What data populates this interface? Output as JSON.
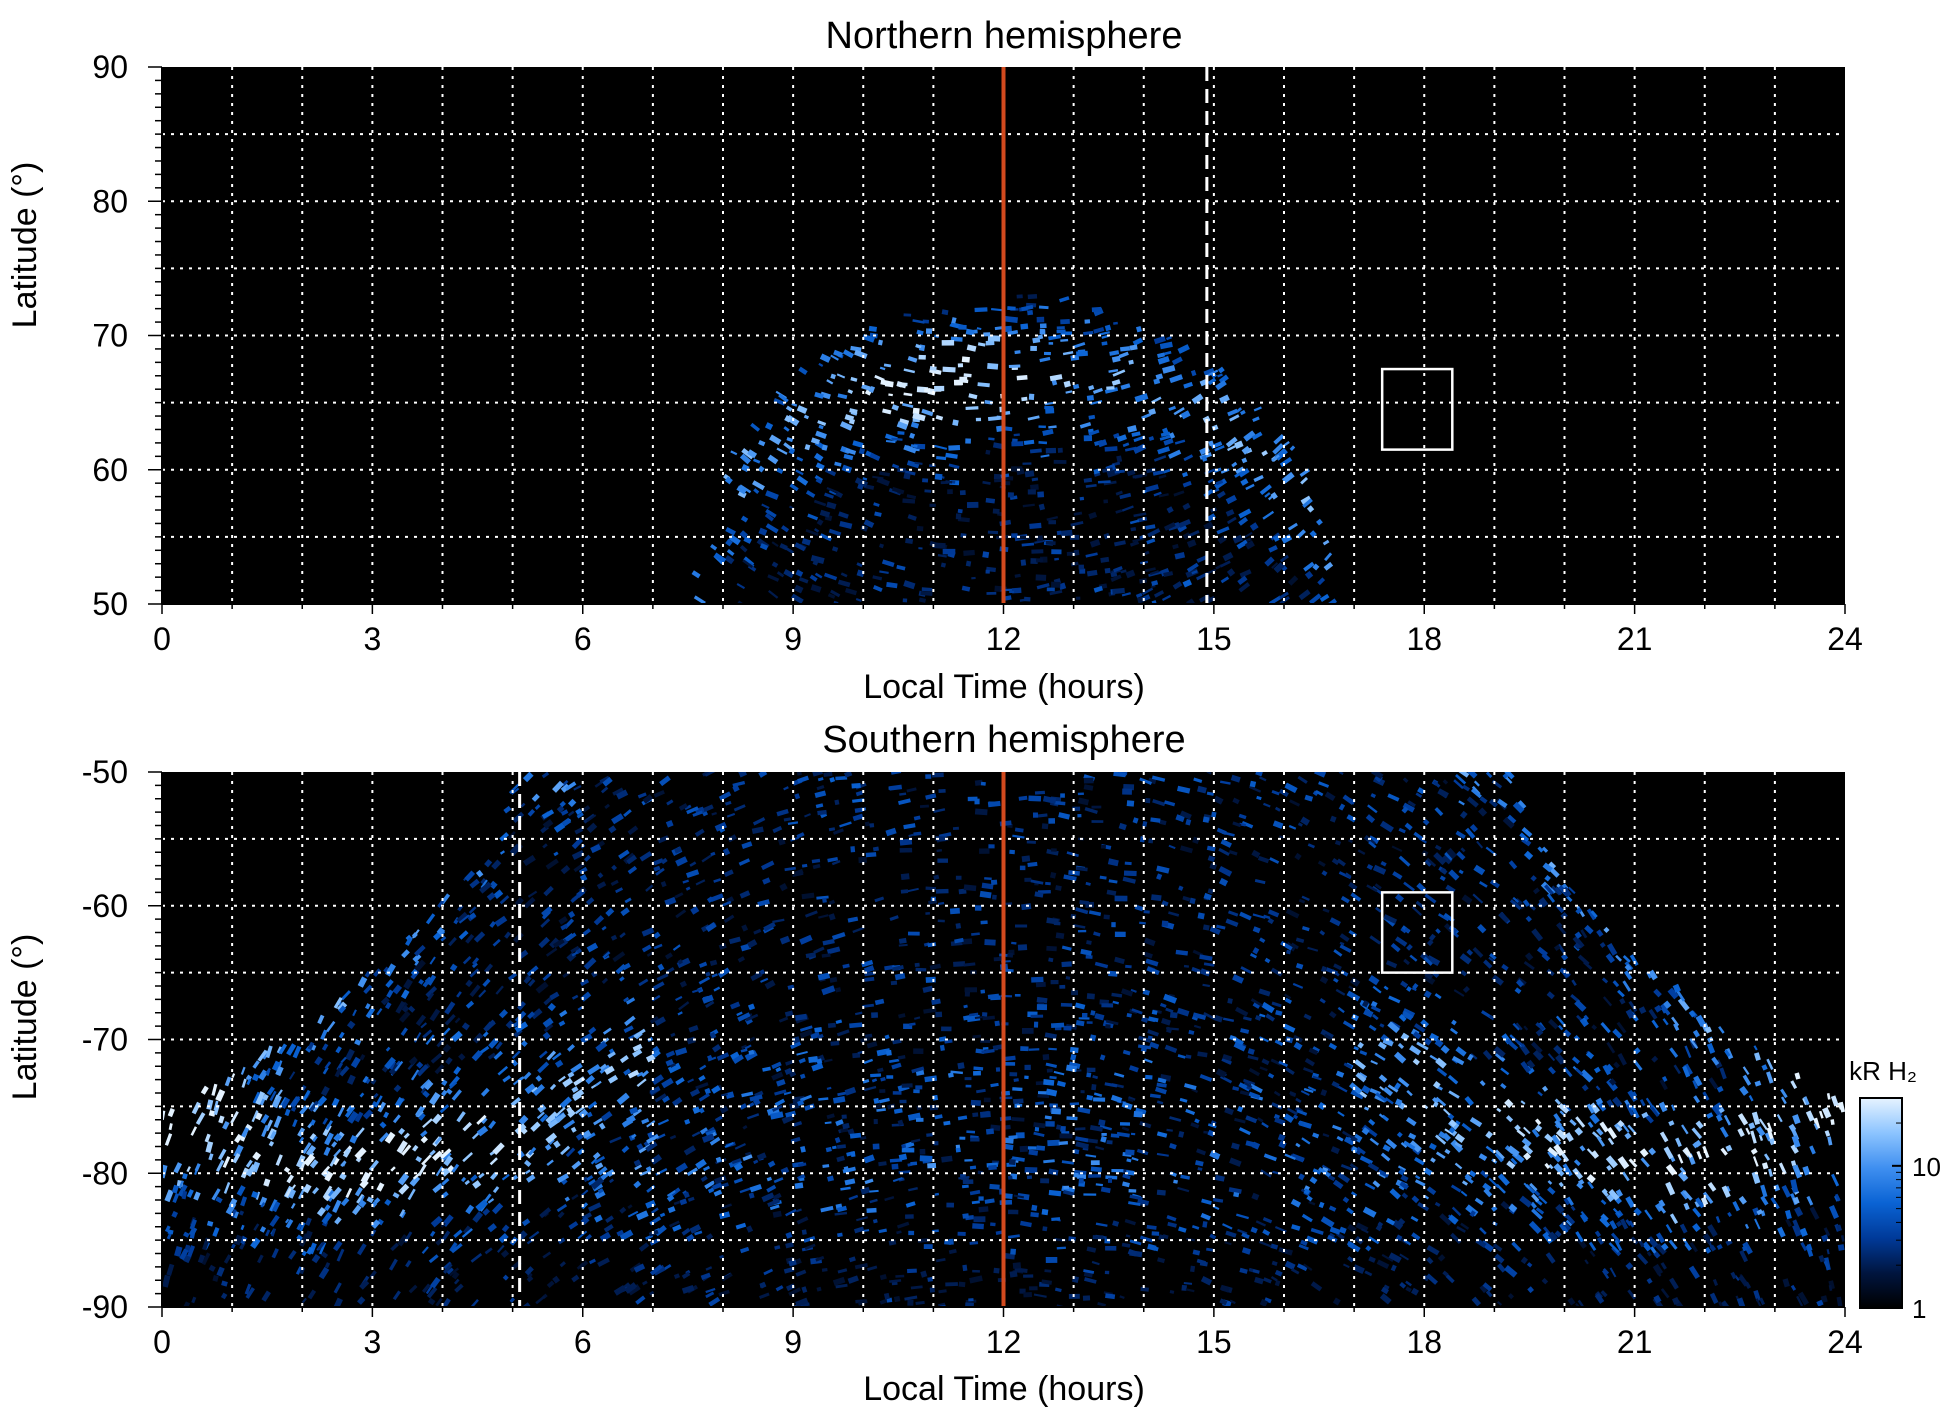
{
  "colors": {
    "background": "#000000",
    "grid": "#ffffff",
    "noon_line": "#d24a1e",
    "terminator_line": "#ffffff",
    "box": "#ffffff",
    "colormap": [
      "#000000",
      "#00153f",
      "#003a99",
      "#0a63d4",
      "#3f8ff0",
      "#8cc4ff",
      "#e6f3ff"
    ]
  },
  "chart_data": [
    {
      "type": "heatmap",
      "title": "Northern hemisphere",
      "xlabel": "Local Time (hours)",
      "ylabel": "Latitude (°)",
      "xlim": [
        0,
        24
      ],
      "ylim": [
        50,
        90
      ],
      "x_ticks": [
        0,
        3,
        6,
        9,
        12,
        15,
        18,
        21,
        24
      ],
      "x_tick_labels": [
        "0",
        "3",
        "6",
        "9",
        "12",
        "15",
        "18",
        "21",
        "24"
      ],
      "y_ticks": [
        50,
        60,
        70,
        80,
        90
      ],
      "y_tick_labels": [
        "50",
        "60",
        "70",
        "80",
        "90"
      ],
      "grid_x": [
        1,
        2,
        3,
        4,
        5,
        6,
        7,
        8,
        9,
        10,
        11,
        12,
        13,
        14,
        15,
        16,
        17,
        18,
        19,
        20,
        21,
        22,
        23
      ],
      "grid_y": [
        55,
        60,
        65,
        70,
        75,
        80,
        85
      ],
      "noon_line_x": 12,
      "terminator_line_x": 14.9,
      "box": {
        "x": [
          17.4,
          18.4
        ],
        "y": [
          61.5,
          67.5
        ]
      },
      "emission": {
        "coverage_lt_range_at_50": [
          7.6,
          16.7
        ],
        "coverage_max_lat": 73,
        "oval_lat_range": [
          62,
          73
        ],
        "oval_peak_lt": 11.2
      }
    },
    {
      "type": "heatmap",
      "title": "Southern hemisphere",
      "xlabel": "Local Time (hours)",
      "ylabel": "Latitude (°)",
      "xlim": [
        0,
        24
      ],
      "ylim": [
        -90,
        -50
      ],
      "x_ticks": [
        0,
        3,
        6,
        9,
        12,
        15,
        18,
        21,
        24
      ],
      "x_tick_labels": [
        "0",
        "3",
        "6",
        "9",
        "12",
        "15",
        "18",
        "21",
        "24"
      ],
      "y_ticks": [
        -90,
        -80,
        -70,
        -60,
        -50
      ],
      "y_tick_labels": [
        "-90",
        "-80",
        "-70",
        "-60",
        "-50"
      ],
      "grid_x": [
        1,
        2,
        3,
        4,
        5,
        6,
        7,
        8,
        9,
        10,
        11,
        12,
        13,
        14,
        15,
        16,
        17,
        18,
        19,
        20,
        21,
        22,
        23
      ],
      "grid_y": [
        -85,
        -80,
        -75,
        -70,
        -65,
        -60,
        -55
      ],
      "noon_line_x": 12,
      "terminator_line_x": 5.1,
      "box": {
        "x": [
          17.4,
          18.4
        ],
        "y": [
          -65,
          -59
        ]
      },
      "emission": {
        "coverage_lt_range_at_minus50": [
          5,
          19.3
        ],
        "coverage_min_edge_lat": -75.5,
        "oval_lat_range": [
          -88,
          -74
        ],
        "oval_peak_lt": [
          2,
          22
        ]
      }
    }
  ],
  "colorbar": {
    "label": "kR H₂",
    "scale": "log",
    "range": [
      1,
      30
    ],
    "ticks": [
      1,
      10
    ],
    "tick_labels": [
      "1",
      "10"
    ]
  }
}
